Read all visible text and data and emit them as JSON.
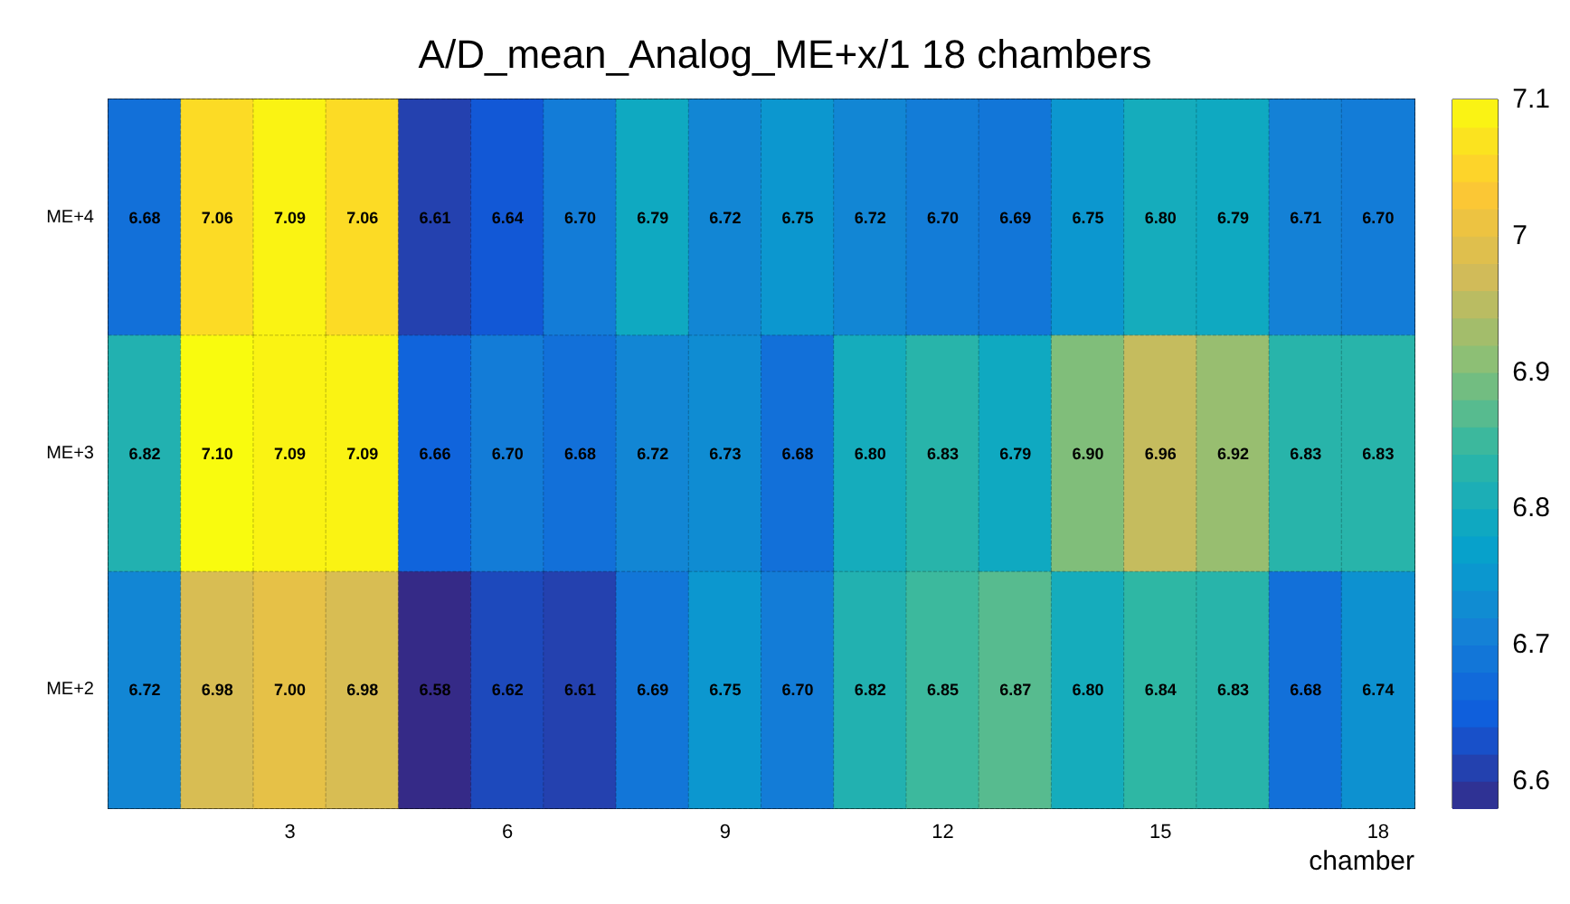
{
  "chart_data": {
    "type": "heatmap",
    "title": "A/D_mean_Analog_ME+x/1 18 chambers",
    "xlabel": "chamber",
    "categories": [
      null,
      null,
      "3",
      null,
      null,
      "6",
      null,
      null,
      "9",
      null,
      null,
      "12",
      null,
      null,
      "15",
      null,
      null,
      "18"
    ],
    "y_categories": [
      "ME+4",
      "ME+3",
      "ME+2"
    ],
    "cells": [
      [
        6.68,
        7.06,
        7.09,
        7.06,
        6.61,
        6.64,
        6.7,
        6.79,
        6.72,
        6.75,
        6.72,
        6.7,
        6.69,
        6.75,
        6.8,
        6.79,
        6.71,
        6.7
      ],
      [
        6.82,
        7.1,
        7.09,
        7.09,
        6.66,
        6.7,
        6.68,
        6.72,
        6.73,
        6.68,
        6.8,
        6.83,
        6.79,
        6.9,
        6.96,
        6.92,
        6.83,
        6.83
      ],
      [
        6.72,
        6.98,
        7.0,
        6.98,
        6.58,
        6.62,
        6.61,
        6.69,
        6.75,
        6.7,
        6.82,
        6.85,
        6.87,
        6.8,
        6.84,
        6.83,
        6.68,
        6.74
      ]
    ],
    "cell_labels": [
      [
        "6.68",
        "7.06",
        "7.09",
        "7.06",
        "6.61",
        "6.64",
        "6.70",
        "6.79",
        "6.72",
        "6.75",
        "6.72",
        "6.70",
        "6.69",
        "6.75",
        "6.80",
        "6.79",
        "6.71",
        "6.70"
      ],
      [
        "6.82",
        "7.10",
        "7.09",
        "7.09",
        "6.66",
        "6.70",
        "6.68",
        "6.72",
        "6.73",
        "6.68",
        "6.80",
        "6.83",
        "6.79",
        "6.90",
        "6.96",
        "6.92",
        "6.83",
        "6.83"
      ],
      [
        "6.72",
        "6.98",
        "7.00",
        "6.98",
        "6.58",
        "6.62",
        "6.61",
        "6.69",
        "6.75",
        "6.70",
        "6.82",
        "6.85",
        "6.87",
        "6.80",
        "6.84",
        "6.83",
        "6.68",
        "6.74"
      ]
    ],
    "clim": [
      6.58,
      7.1
    ],
    "cticks": [
      6.6,
      6.7,
      6.8,
      6.9,
      7,
      7.1
    ]
  }
}
